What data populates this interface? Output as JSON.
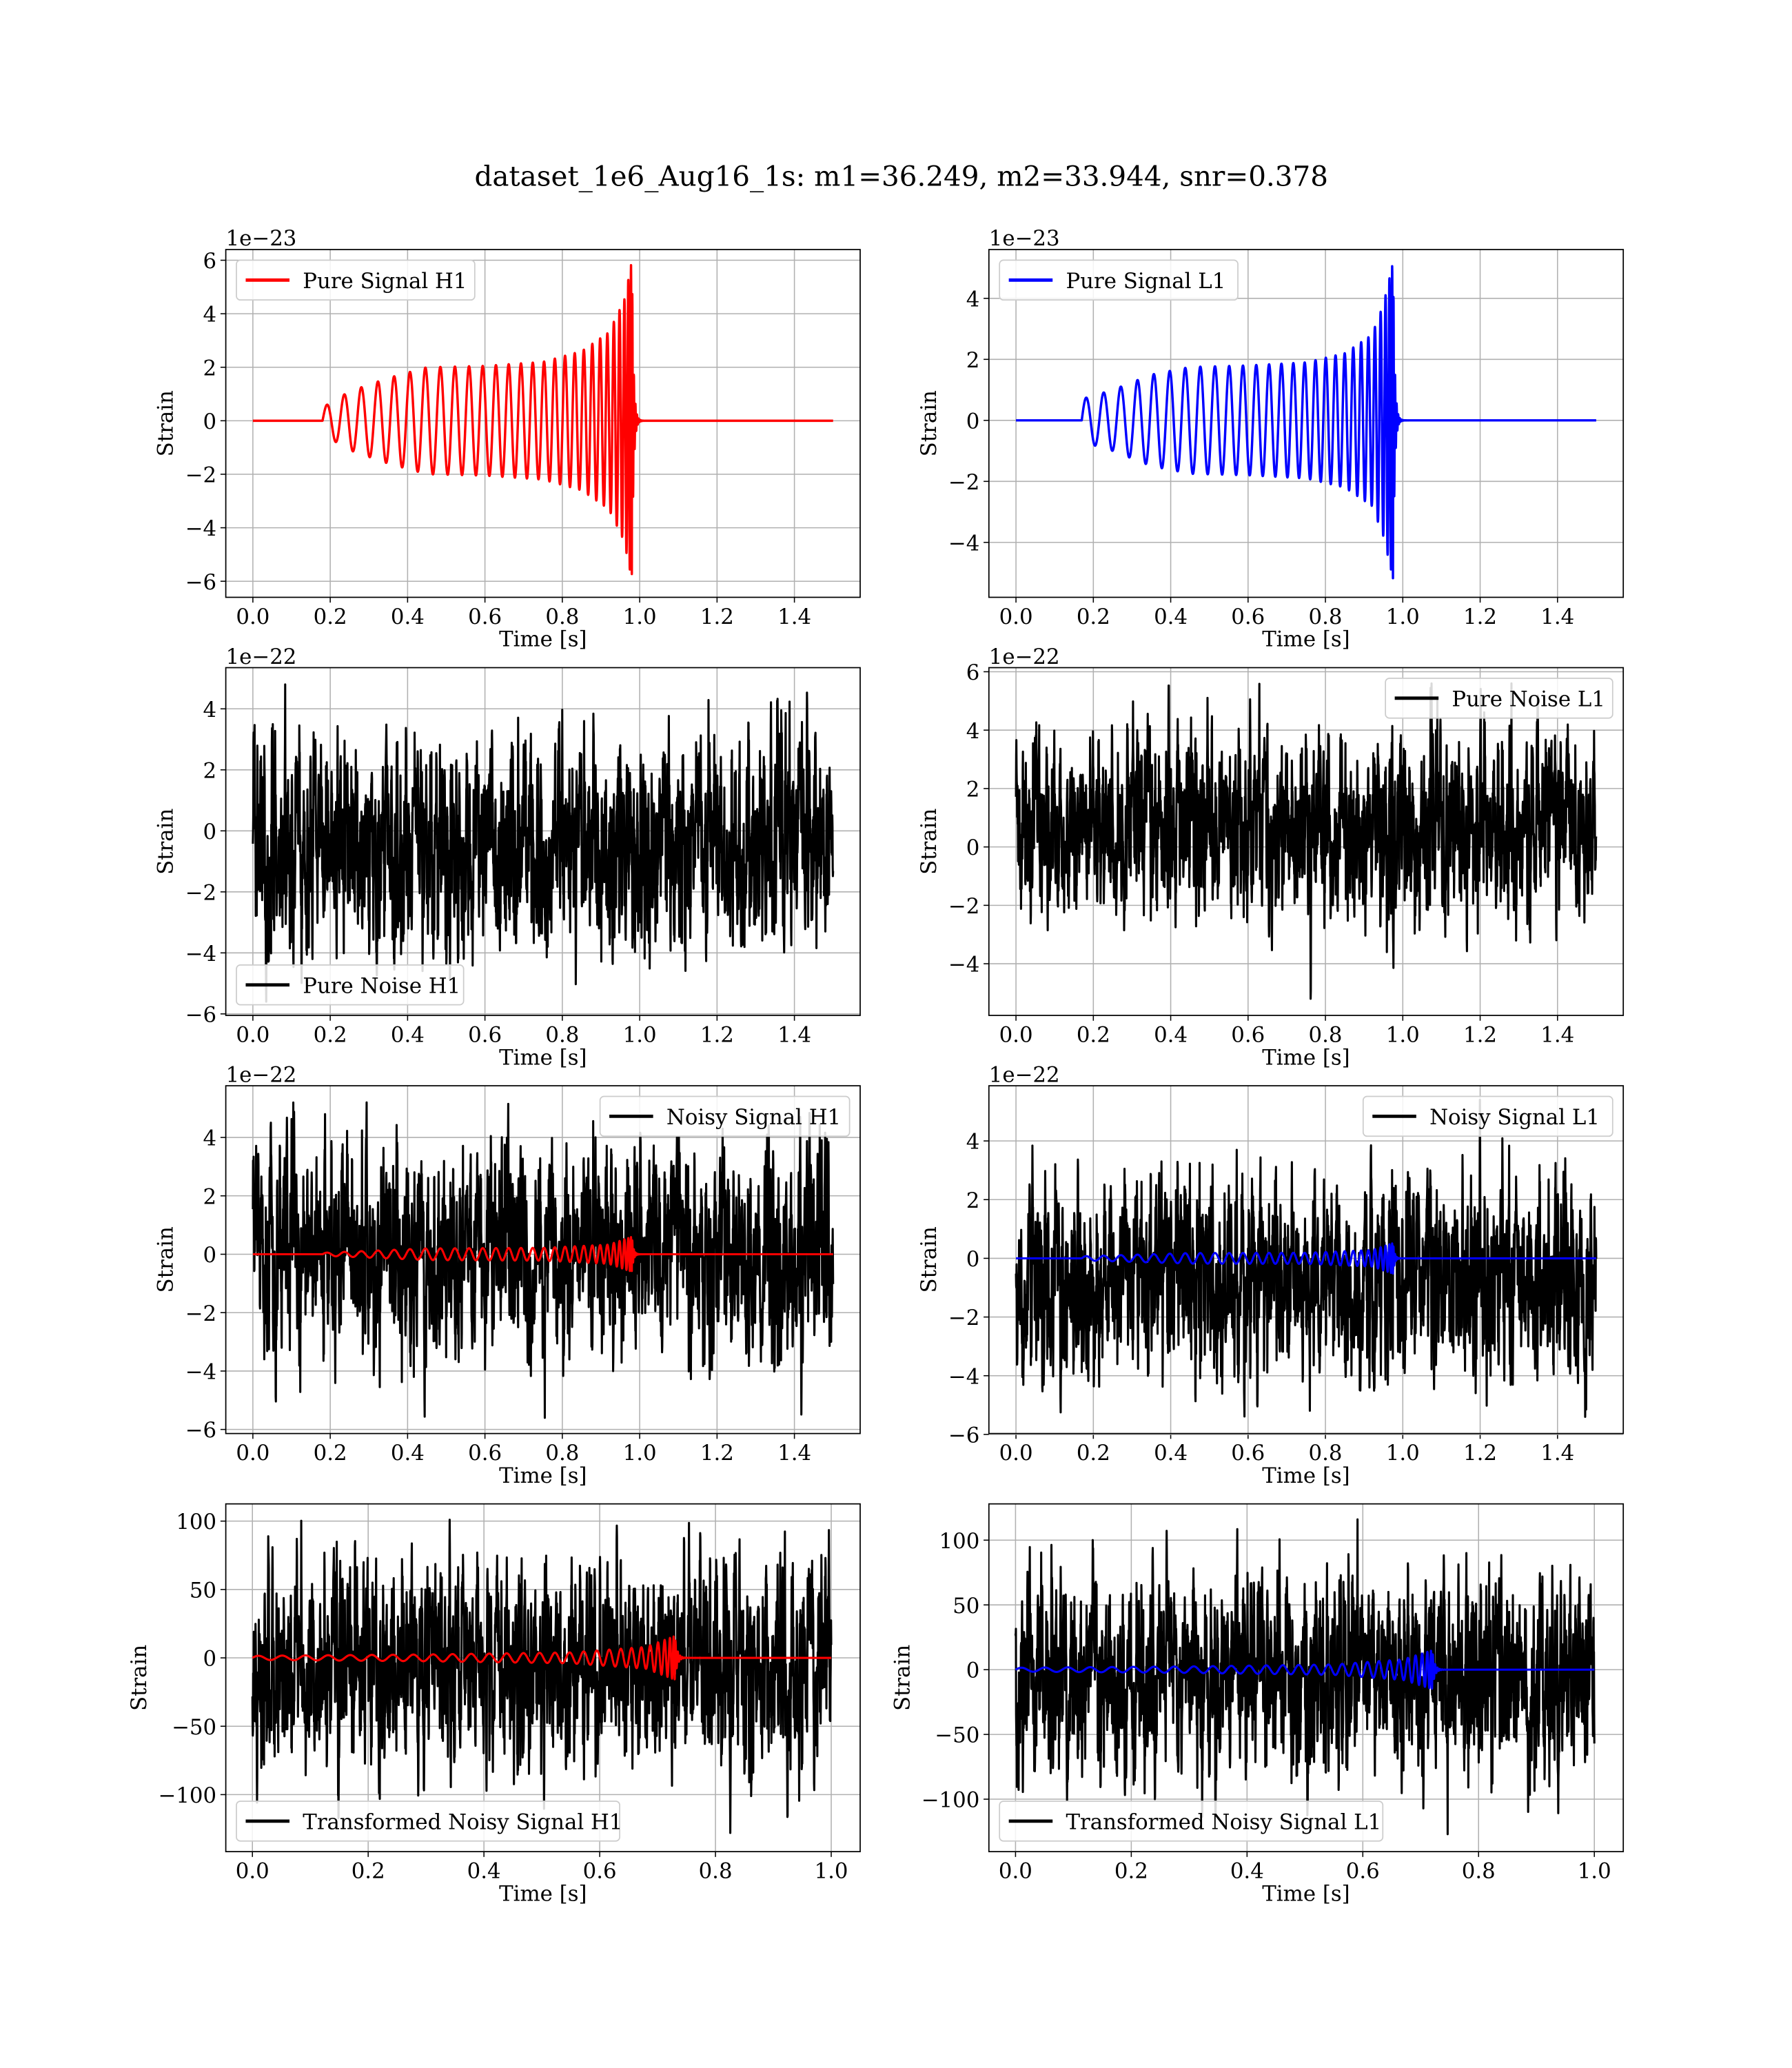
{
  "title": "dataset_1e6_Aug16_1s: m1=36.249, m2=33.944, snr=0.378",
  "chart_data": [
    {
      "type": "line",
      "id": "pure-signal-h1",
      "legend": "Pure Signal H1",
      "legend_loc": "upper-left",
      "xlabel": "Time [s]",
      "ylabel": "Strain",
      "offset_text": "1e−23",
      "grid": true,
      "xlim": [
        -0.07,
        1.57
      ],
      "ylim": [
        -6.6,
        6.4
      ],
      "xticks": [
        0,
        0.2,
        0.4,
        0.6,
        0.8,
        1.0,
        1.2,
        1.4
      ],
      "xticklabels": [
        "0.0",
        "0.2",
        "0.4",
        "0.6",
        "0.8",
        "1.0",
        "1.2",
        "1.4"
      ],
      "yticks": [
        -6,
        -4,
        -2,
        0,
        2,
        4,
        6
      ],
      "yticklabels": [
        "−6",
        "−4",
        "−2",
        "0",
        "2",
        "4",
        "6"
      ],
      "series": [
        {
          "name": "Pure Signal H1",
          "kind": "chirp",
          "color": "#ff0000",
          "start": 0.18,
          "merger": 0.98,
          "end": 1.5,
          "envelope_t": [
            0.18,
            0.25,
            0.35,
            0.45,
            0.6,
            0.75,
            0.85,
            0.92,
            0.96,
            0.98
          ],
          "envelope_amp": [
            0.5,
            1.1,
            1.6,
            2.0,
            2.05,
            2.2,
            2.6,
            3.3,
            4.5,
            6.0
          ]
        }
      ]
    },
    {
      "type": "line",
      "id": "pure-signal-l1",
      "legend": "Pure Signal L1",
      "legend_loc": "upper-left",
      "xlabel": "Time [s]",
      "ylabel": "Strain",
      "offset_text": "1e−23",
      "grid": true,
      "xlim": [
        -0.07,
        1.57
      ],
      "ylim": [
        -5.8,
        5.6
      ],
      "xticks": [
        0,
        0.2,
        0.4,
        0.6,
        0.8,
        1.0,
        1.2,
        1.4
      ],
      "xticklabels": [
        "0.0",
        "0.2",
        "0.4",
        "0.6",
        "0.8",
        "1.0",
        "1.2",
        "1.4"
      ],
      "yticks": [
        -4,
        -2,
        0,
        2,
        4
      ],
      "yticklabels": [
        "−4",
        "−2",
        "0",
        "2",
        "4"
      ],
      "series": [
        {
          "name": "Pure Signal L1",
          "kind": "chirp",
          "color": "#0000ff",
          "start": 0.17,
          "merger": 0.975,
          "end": 1.5,
          "envelope_t": [
            0.17,
            0.25,
            0.35,
            0.45,
            0.6,
            0.75,
            0.85,
            0.92,
            0.95,
            0.975
          ],
          "envelope_amp": [
            0.7,
            1.0,
            1.5,
            1.75,
            1.8,
            1.9,
            2.2,
            2.8,
            3.8,
            5.2
          ]
        }
      ]
    },
    {
      "type": "line",
      "id": "pure-noise-h1",
      "legend": "Pure Noise H1",
      "legend_loc": "lower-left",
      "xlabel": "Time [s]",
      "ylabel": "Strain",
      "offset_text": "1e−22",
      "grid": true,
      "xlim": [
        -0.07,
        1.57
      ],
      "ylim": [
        -6.05,
        5.35
      ],
      "xticks": [
        0,
        0.2,
        0.4,
        0.6,
        0.8,
        1.0,
        1.2,
        1.4
      ],
      "xticklabels": [
        "0.0",
        "0.2",
        "0.4",
        "0.6",
        "0.8",
        "1.0",
        "1.2",
        "1.4"
      ],
      "yticks": [
        -6,
        -4,
        -2,
        0,
        2,
        4
      ],
      "yticklabels": [
        "−6",
        "−4",
        "−2",
        "0",
        "2",
        "4"
      ],
      "series": [
        {
          "name": "Pure Noise H1",
          "kind": "noise",
          "color": "#000000",
          "end": 1.5,
          "range": [
            -5.6,
            4.8
          ]
        }
      ]
    },
    {
      "type": "line",
      "id": "pure-noise-l1",
      "legend": "Pure Noise L1",
      "legend_loc": "upper-right",
      "xlabel": "Time [s]",
      "ylabel": "Strain",
      "offset_text": "1e−22",
      "grid": true,
      "xlim": [
        -0.07,
        1.57
      ],
      "ylim": [
        -5.77,
        6.14
      ],
      "xticks": [
        0,
        0.2,
        0.4,
        0.6,
        0.8,
        1.0,
        1.2,
        1.4
      ],
      "xticklabels": [
        "0.0",
        "0.2",
        "0.4",
        "0.6",
        "0.8",
        "1.0",
        "1.2",
        "1.4"
      ],
      "yticks": [
        -4,
        -2,
        0,
        2,
        4,
        6
      ],
      "yticklabels": [
        "−4",
        "−2",
        "0",
        "2",
        "4",
        "6"
      ],
      "series": [
        {
          "name": "Pure Noise L1",
          "kind": "noise",
          "color": "#000000",
          "end": 1.5,
          "range": [
            -5.2,
            5.6
          ]
        }
      ]
    },
    {
      "type": "line",
      "id": "noisy-signal-h1",
      "legend": "Noisy Signal H1",
      "legend_loc": "upper-right",
      "xlabel": "Time [s]",
      "ylabel": "Strain",
      "offset_text": "1e−22",
      "grid": true,
      "xlim": [
        -0.07,
        1.57
      ],
      "ylim": [
        -6.14,
        5.77
      ],
      "xticks": [
        0,
        0.2,
        0.4,
        0.6,
        0.8,
        1.0,
        1.2,
        1.4
      ],
      "xticklabels": [
        "0.0",
        "0.2",
        "0.4",
        "0.6",
        "0.8",
        "1.0",
        "1.2",
        "1.4"
      ],
      "yticks": [
        -6,
        -4,
        -2,
        0,
        2,
        4
      ],
      "yticklabels": [
        "−6",
        "−4",
        "−2",
        "0",
        "2",
        "4"
      ],
      "series": [
        {
          "name": "Noisy Signal H1",
          "kind": "noise",
          "color": "#000000",
          "end": 1.5,
          "range": [
            -5.6,
            5.2
          ]
        },
        {
          "kind": "chirp",
          "color": "#ff0000",
          "start": 0.18,
          "merger": 0.98,
          "end": 1.5,
          "envelope_t": [
            0.18,
            0.45,
            0.75,
            0.92,
            0.98
          ],
          "envelope_amp": [
            0.05,
            0.2,
            0.22,
            0.33,
            0.6
          ]
        }
      ]
    },
    {
      "type": "line",
      "id": "noisy-signal-l1",
      "legend": "Noisy Signal L1",
      "legend_loc": "upper-right",
      "xlabel": "Time [s]",
      "ylabel": "Strain",
      "offset_text": "1e−22",
      "grid": true,
      "xlim": [
        -0.07,
        1.57
      ],
      "ylim": [
        -5.97,
        5.88
      ],
      "xticks": [
        0,
        0.2,
        0.4,
        0.6,
        0.8,
        1.0,
        1.2,
        1.4
      ],
      "xticklabels": [
        "0.0",
        "0.2",
        "0.4",
        "0.6",
        "0.8",
        "1.0",
        "1.2",
        "1.4"
      ],
      "yticks": [
        -6,
        -4,
        -2,
        0,
        2,
        4
      ],
      "yticklabels": [
        "−6",
        "−4",
        "−2",
        "0",
        "2",
        "4"
      ],
      "series": [
        {
          "name": "Noisy Signal L1",
          "kind": "noise",
          "color": "#000000",
          "end": 1.5,
          "range": [
            -5.4,
            5.4
          ]
        },
        {
          "kind": "chirp",
          "color": "#0000ff",
          "start": 0.17,
          "merger": 0.975,
          "end": 1.5,
          "envelope_t": [
            0.17,
            0.45,
            0.75,
            0.92,
            0.975
          ],
          "envelope_amp": [
            0.07,
            0.18,
            0.19,
            0.28,
            0.52
          ]
        }
      ]
    },
    {
      "type": "line",
      "id": "transformed-noisy-signal-h1",
      "legend": "Transformed Noisy Signal H1",
      "legend_loc": "lower-left",
      "xlabel": "Time [s]",
      "ylabel": "Strain",
      "offset_text": "",
      "grid": true,
      "xlim": [
        -0.046,
        1.05
      ],
      "ylim": [
        -141.7,
        112.6
      ],
      "xticks": [
        0,
        0.2,
        0.4,
        0.6,
        0.8,
        1.0
      ],
      "xticklabels": [
        "0.0",
        "0.2",
        "0.4",
        "0.6",
        "0.8",
        "1.0"
      ],
      "yticks": [
        -100,
        -50,
        0,
        50,
        100
      ],
      "yticklabels": [
        "−100",
        "−50",
        "0",
        "50",
        "100"
      ],
      "series": [
        {
          "name": "Transformed Noisy Signal H1",
          "kind": "noise",
          "color": "#000000",
          "end": 1.0,
          "range": [
            -128,
            101
          ]
        },
        {
          "kind": "chirp",
          "color": "#ff0000",
          "start": 0.0,
          "merger": 0.73,
          "end": 1.0,
          "envelope_t": [
            0,
            0.3,
            0.55,
            0.68,
            0.73
          ],
          "envelope_amp": [
            1.5,
            2.5,
            4,
            8,
            16
          ]
        }
      ]
    },
    {
      "type": "line",
      "id": "transformed-noisy-signal-l1",
      "legend": "Transformed Noisy Signal L1",
      "legend_loc": "lower-left",
      "xlabel": "Time [s]",
      "ylabel": "Strain",
      "offset_text": "",
      "grid": true,
      "xlim": [
        -0.046,
        1.05
      ],
      "ylim": [
        -140.5,
        128
      ],
      "xticks": [
        0,
        0.2,
        0.4,
        0.6,
        0.8,
        1.0
      ],
      "xticklabels": [
        "0.0",
        "0.2",
        "0.4",
        "0.6",
        "0.8",
        "1.0"
      ],
      "yticks": [
        -100,
        -50,
        0,
        50,
        100
      ],
      "yticklabels": [
        "−100",
        "−50",
        "0",
        "50",
        "100"
      ],
      "series": [
        {
          "name": "Transformed Noisy Signal L1",
          "kind": "noise",
          "color": "#000000",
          "end": 1.0,
          "range": [
            -127,
            116
          ]
        },
        {
          "kind": "chirp",
          "color": "#0000ff",
          "start": 0.0,
          "merger": 0.72,
          "end": 1.0,
          "envelope_t": [
            0,
            0.3,
            0.55,
            0.67,
            0.72
          ],
          "envelope_amp": [
            1.5,
            2.5,
            4,
            8,
            15
          ]
        }
      ]
    }
  ]
}
